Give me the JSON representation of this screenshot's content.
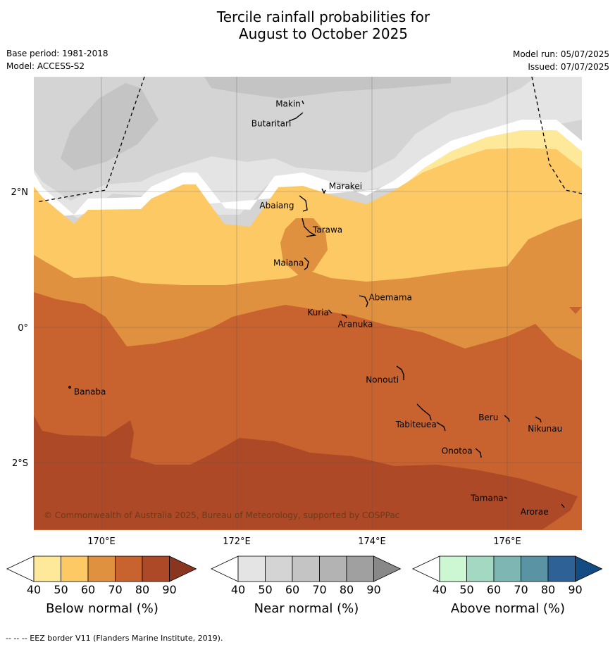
{
  "title_line1": "Tercile rainfall probabilities for",
  "title_line2": "August to October 2025",
  "base_period": "Base period: 1981-2018",
  "model": "Model: ACCESS-S2",
  "model_run": "Model run: 05/07/2025",
  "issued": "Issued: 07/07/2025",
  "copyright": "© Commonwealth of Australia 2025, Bureau of Meteorology, supported by COSPPac",
  "footnote": "--  --  -- EEZ border V11 (Flanders Marine Institute, 2019).",
  "lon_labels": [
    "170°E",
    "172°E",
    "174°E",
    "176°E"
  ],
  "lat_labels": [
    "2°N",
    "0°",
    "2°S"
  ],
  "places": [
    {
      "name": "Makin",
      "lon": 172.95,
      "lat": 3.3
    },
    {
      "name": "Butaritari",
      "lon": 172.8,
      "lat": 3.05
    },
    {
      "name": "Marakei",
      "lon": 173.3,
      "lat": 2.0
    },
    {
      "name": "Abaiang",
      "lon": 172.9,
      "lat": 1.8
    },
    {
      "name": "Tarawa",
      "lon": 173.0,
      "lat": 1.4
    },
    {
      "name": "Maiana",
      "lon": 173.0,
      "lat": 0.95
    },
    {
      "name": "Abemama",
      "lon": 173.85,
      "lat": 0.4
    },
    {
      "name": "Kuria",
      "lon": 173.4,
      "lat": 0.22
    },
    {
      "name": "Aranuka",
      "lon": 173.6,
      "lat": 0.17
    },
    {
      "name": "Nonouti",
      "lon": 174.45,
      "lat": -0.65
    },
    {
      "name": "Banaba",
      "lon": 169.53,
      "lat": -0.87
    },
    {
      "name": "Tabiteuea",
      "lon": 174.85,
      "lat": -1.35
    },
    {
      "name": "Beru",
      "lon": 175.95,
      "lat": -1.33
    },
    {
      "name": "Nikunau",
      "lon": 176.45,
      "lat": -1.35
    },
    {
      "name": "Onotoa",
      "lon": 175.55,
      "lat": -1.8
    },
    {
      "name": "Tamana",
      "lon": 175.98,
      "lat": -2.5
    },
    {
      "name": "Arorae",
      "lon": 176.82,
      "lat": -2.64
    }
  ],
  "colorbars": [
    {
      "label": "Below normal (%)",
      "ticks": [
        "40",
        "50",
        "60",
        "70",
        "80",
        "90"
      ],
      "colors": [
        "#ffffff",
        "#fee89a",
        "#fdc965",
        "#e0913f",
        "#c8622e",
        "#ad4926",
        "#8a3520"
      ]
    },
    {
      "label": "Near normal (%)",
      "ticks": [
        "40",
        "50",
        "60",
        "70",
        "80",
        "90"
      ],
      "colors": [
        "#ffffff",
        "#e4e4e4",
        "#d4d4d4",
        "#c4c4c4",
        "#b3b3b3",
        "#a0a0a0",
        "#888888"
      ]
    },
    {
      "label": "Above normal (%)",
      "ticks": [
        "40",
        "50",
        "60",
        "70",
        "80",
        "90"
      ],
      "colors": [
        "#ffffff",
        "#ccf7d2",
        "#a3d9c2",
        "#7db6b2",
        "#5a94a4",
        "#2e6296",
        "#134b84"
      ]
    }
  ],
  "colors": {
    "near60": "#d4d4d4",
    "near70": "#c4c4c4",
    "near50": "#e4e4e4",
    "below50": "#fee89a",
    "below60": "#fdc965",
    "below70": "#e0913f",
    "below80": "#c8622e",
    "below90": "#ad4926"
  }
}
